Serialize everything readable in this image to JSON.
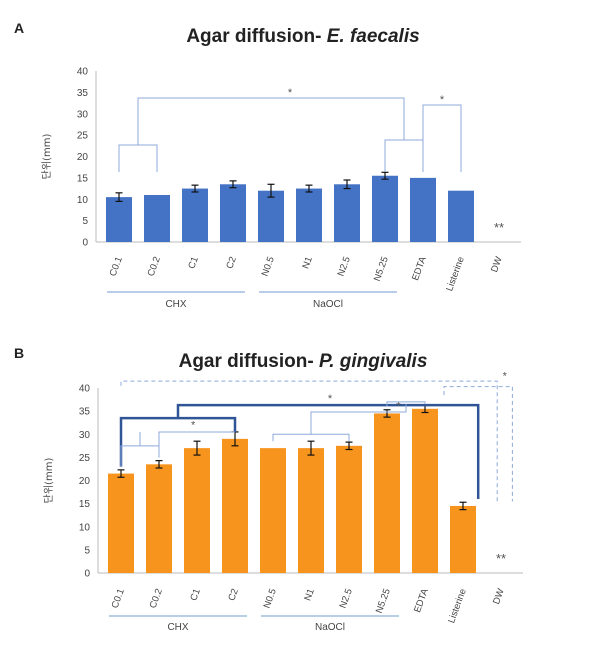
{
  "chart_data": [
    {
      "panel": "A",
      "type": "bar",
      "title_prefix": "Agar diffusion- ",
      "title_species": "E. faecalis",
      "ylabel": "단위(mm)",
      "ylim": [
        0,
        40
      ],
      "yticks": [
        "0",
        "5",
        "10",
        "15",
        "20",
        "25",
        "30",
        "35",
        "40"
      ],
      "categories": [
        "C0.1",
        "C0.2",
        "C1",
        "C2",
        "N0.5",
        "N1",
        "N2.5",
        "N5.25",
        "EDTA",
        "Listerine",
        "DW"
      ],
      "values": [
        10.5,
        11,
        12.5,
        13.5,
        12,
        12.5,
        13.5,
        15.5,
        15,
        12,
        0
      ],
      "errors": [
        1,
        0,
        0.8,
        0.8,
        1.5,
        0.8,
        1,
        0.8,
        0,
        0,
        0
      ],
      "color": "#4472C4",
      "groups": [
        {
          "label": "CHX",
          "from": 0,
          "to": 3
        },
        {
          "label": "NaOCl",
          "from": 4,
          "to": 7
        }
      ],
      "annotations": {
        "star": "*",
        "double_star": "**"
      }
    },
    {
      "panel": "B",
      "type": "bar",
      "title_prefix": "Agar diffusion- ",
      "title_species": "P. gingivalis",
      "ylabel": "단위(mm)",
      "ylim": [
        0,
        40
      ],
      "yticks": [
        "0",
        "5",
        "10",
        "15",
        "20",
        "25",
        "30",
        "35",
        "40"
      ],
      "categories": [
        "C0.1",
        "C0.2",
        "C1",
        "C2",
        "N0.5",
        "N1",
        "N2.5",
        "N5.25",
        "EDTA",
        "Listerine",
        "DW"
      ],
      "values": [
        21.5,
        23.5,
        27,
        29,
        27,
        27,
        27.5,
        34.5,
        35.5,
        14.5,
        0
      ],
      "errors": [
        0.8,
        0.8,
        1.5,
        1.5,
        0,
        1.5,
        0.8,
        0.8,
        0.8,
        0.8,
        0
      ],
      "color": "#F7941D",
      "groups": [
        {
          "label": "CHX",
          "from": 0,
          "to": 3
        },
        {
          "label": "NaOCl",
          "from": 4,
          "to": 7
        }
      ],
      "annotations": {
        "star": "*",
        "double_star": "**"
      }
    }
  ]
}
